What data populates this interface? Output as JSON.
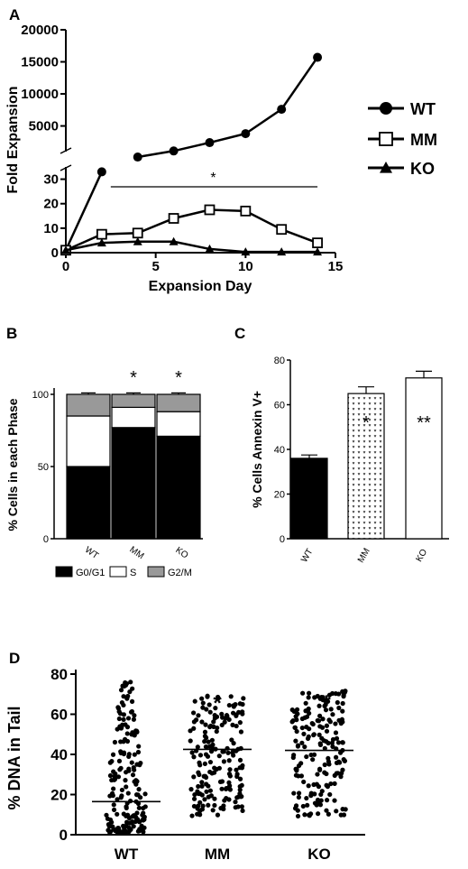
{
  "chart_data": [
    {
      "panel": "A",
      "type": "line",
      "xlabel": "Expansion Day",
      "ylabel": "Fold Expansion",
      "xlim": [
        0,
        15
      ],
      "x_ticks": [
        0,
        5,
        10,
        15
      ],
      "y_ticks_upper": [
        5000,
        10000,
        15000,
        20000
      ],
      "y_ticks_lower": [
        0,
        10,
        20,
        30
      ],
      "significance": "*",
      "legend": "right",
      "series": [
        {
          "name": "WT",
          "marker": "filled-circle",
          "x": [
            0,
            2,
            4,
            6,
            8,
            10,
            12,
            14
          ],
          "y": [
            1,
            33,
            150,
            1100,
            2400,
            3800,
            7600,
            15700
          ]
        },
        {
          "name": "MM",
          "marker": "open-square",
          "x": [
            0,
            2,
            4,
            6,
            8,
            10,
            12,
            14
          ],
          "y": [
            1,
            7.5,
            8,
            14,
            17.5,
            17,
            9.5,
            4
          ]
        },
        {
          "name": "KO",
          "marker": "filled-triangle",
          "x": [
            0,
            2,
            4,
            6,
            8,
            10,
            12,
            14
          ],
          "y": [
            1,
            4,
            4.5,
            4.5,
            1.5,
            0.3,
            0.3,
            0.3
          ]
        }
      ]
    },
    {
      "panel": "B",
      "type": "bar",
      "stacked": true,
      "ylabel": "% Cells in each Phase",
      "categories": [
        "WT",
        "MM",
        "KO"
      ],
      "ylim": [
        0,
        100
      ],
      "y_ticks": [
        0,
        50,
        100
      ],
      "significance": [
        "",
        "*",
        "*"
      ],
      "series": [
        {
          "name": "G0/G1",
          "color": "#000000",
          "values": [
            50,
            77,
            71
          ],
          "errors": [
            1.5,
            2.5,
            1
          ]
        },
        {
          "name": "S",
          "color": "#ffffff",
          "values": [
            35,
            14,
            17
          ],
          "errors": [
            1,
            1,
            1
          ]
        },
        {
          "name": "G2/M",
          "color": "#999999",
          "values": [
            15,
            9,
            12
          ],
          "errors": [
            1,
            1,
            1
          ]
        }
      ]
    },
    {
      "panel": "C",
      "type": "bar",
      "ylabel": "% Cells Annexin V+",
      "categories": [
        "WT",
        "MM",
        "KO"
      ],
      "values": [
        36,
        65,
        72
      ],
      "errors": [
        1.5,
        3,
        3
      ],
      "fills": [
        "solid",
        "dotted",
        "open"
      ],
      "ylim": [
        0,
        80
      ],
      "y_ticks": [
        0,
        20,
        40,
        60,
        80
      ],
      "significance": [
        "",
        "*",
        "**"
      ]
    },
    {
      "panel": "D",
      "type": "scatter",
      "ylabel": "% DNA in Tail",
      "categories": [
        "WT",
        "MM",
        "KO"
      ],
      "ylim": [
        0,
        80
      ],
      "y_ticks": [
        0,
        20,
        40,
        60,
        80
      ],
      "means": [
        16.5,
        42.5,
        42
      ],
      "ranges": [
        [
          1,
          77
        ],
        [
          1,
          76
        ],
        [
          1,
          79
        ]
      ],
      "points_per_group": 180,
      "significance": [
        "",
        "*",
        "*"
      ]
    }
  ]
}
